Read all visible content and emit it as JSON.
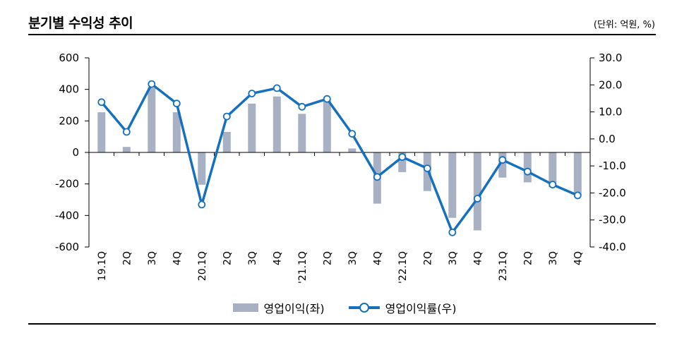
{
  "header": {
    "title": "분기별 수익성 추이",
    "unit": "(단위: 억원, %)"
  },
  "colors": {
    "bar": "#a7b1c3",
    "line": "#1670be",
    "marker_fill": "#ffffff",
    "axis": "#000000"
  },
  "legend": {
    "bar_label": "영업이익(좌)",
    "line_label": "영업이익률(우)"
  },
  "chart_data": {
    "type": "bar",
    "categories": [
      "19.1Q",
      "2Q",
      "3Q",
      "4Q",
      "20.1Q",
      "2Q",
      "3Q",
      "4Q",
      "'21.1Q",
      "2Q",
      "3Q",
      "4Q",
      "'22.1Q",
      "2Q",
      "3Q",
      "4Q",
      "23.1Q",
      "2Q",
      "3Q",
      "4Q"
    ],
    "series": [
      {
        "name": "영업이익(좌)",
        "type": "bar",
        "axis": "left",
        "values": [
          255,
          35,
          410,
          255,
          -205,
          130,
          310,
          355,
          245,
          330,
          25,
          -325,
          -125,
          -245,
          -415,
          -495,
          -160,
          -190,
          -220,
          -270
        ]
      },
      {
        "name": "영업이익률(우)",
        "type": "line",
        "axis": "right",
        "values": [
          13.6,
          2.6,
          20.3,
          13.1,
          -24.3,
          8.3,
          16.8,
          18.8,
          11.9,
          14.8,
          1.9,
          -14.1,
          -6.7,
          -10.9,
          -34.6,
          -22.1,
          -7.8,
          -12.1,
          -16.9,
          -20.9
        ]
      }
    ],
    "y_left": {
      "min": -600,
      "max": 600,
      "ticks": [
        "600",
        "400",
        "200",
        "0",
        "-200",
        "-400",
        "-600"
      ],
      "tick_values": [
        600,
        400,
        200,
        0,
        -200,
        -400,
        -600
      ]
    },
    "y_right": {
      "min": -40,
      "max": 30,
      "ticks": [
        "30.0",
        "20.0",
        "10.0",
        "0.0",
        "-10.0",
        "-20.0",
        "-30.0",
        "-40.0"
      ],
      "tick_values": [
        30,
        20,
        10,
        0,
        -10,
        -20,
        -30,
        -40
      ]
    },
    "grid": false,
    "legend_position": "bottom"
  }
}
